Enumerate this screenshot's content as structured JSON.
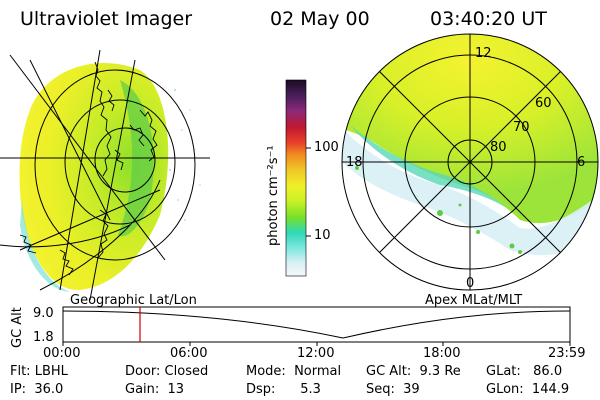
{
  "header": {
    "title": "Ultraviolet Imager",
    "date": "02 May 00",
    "time": "03:40:20 UT"
  },
  "colorbar": {
    "unit_label": "photon cm⁻²s⁻¹",
    "ticks": [
      "100",
      "10"
    ],
    "colors": [
      "#1a0c22",
      "#4a1e5a",
      "#8c2a7a",
      "#c01830",
      "#e8402a",
      "#f08a20",
      "#f0c828",
      "#f0f028",
      "#c8f028",
      "#78e028",
      "#2ed8b8",
      "#80e8e0",
      "#d8f0f4",
      "#f4f8fa"
    ]
  },
  "left_panel": {
    "label": "Geographic Lat/Lon"
  },
  "right_panel": {
    "label": "Apex MLat/MLT",
    "mlt_labels": {
      "top": "12",
      "left": "18",
      "right": "6",
      "bottom": "0"
    },
    "mlat_labels": [
      "60",
      "70",
      "80"
    ]
  },
  "altitude_plot": {
    "y_label": "GC Alt",
    "y_ticks": [
      "9.0",
      "1.8"
    ],
    "x_ticks": [
      "00:00",
      "06:00",
      "12:00",
      "18:00",
      "23:59"
    ],
    "marker_time": "03:40"
  },
  "footer": {
    "row1": {
      "flt": "Flt: LBHL",
      "door": "Door: Closed",
      "mode": "Mode:  Normal",
      "gc_alt": "GC Alt:  9.3 Re",
      "glat": "GLat:   86.0"
    },
    "row2": {
      "ip": "IP:  36.0",
      "gain": "Gain:  13",
      "dsp": "Dsp:      5.3",
      "seq": "Seq:  39",
      "glon": "GLon:  144.9"
    }
  }
}
